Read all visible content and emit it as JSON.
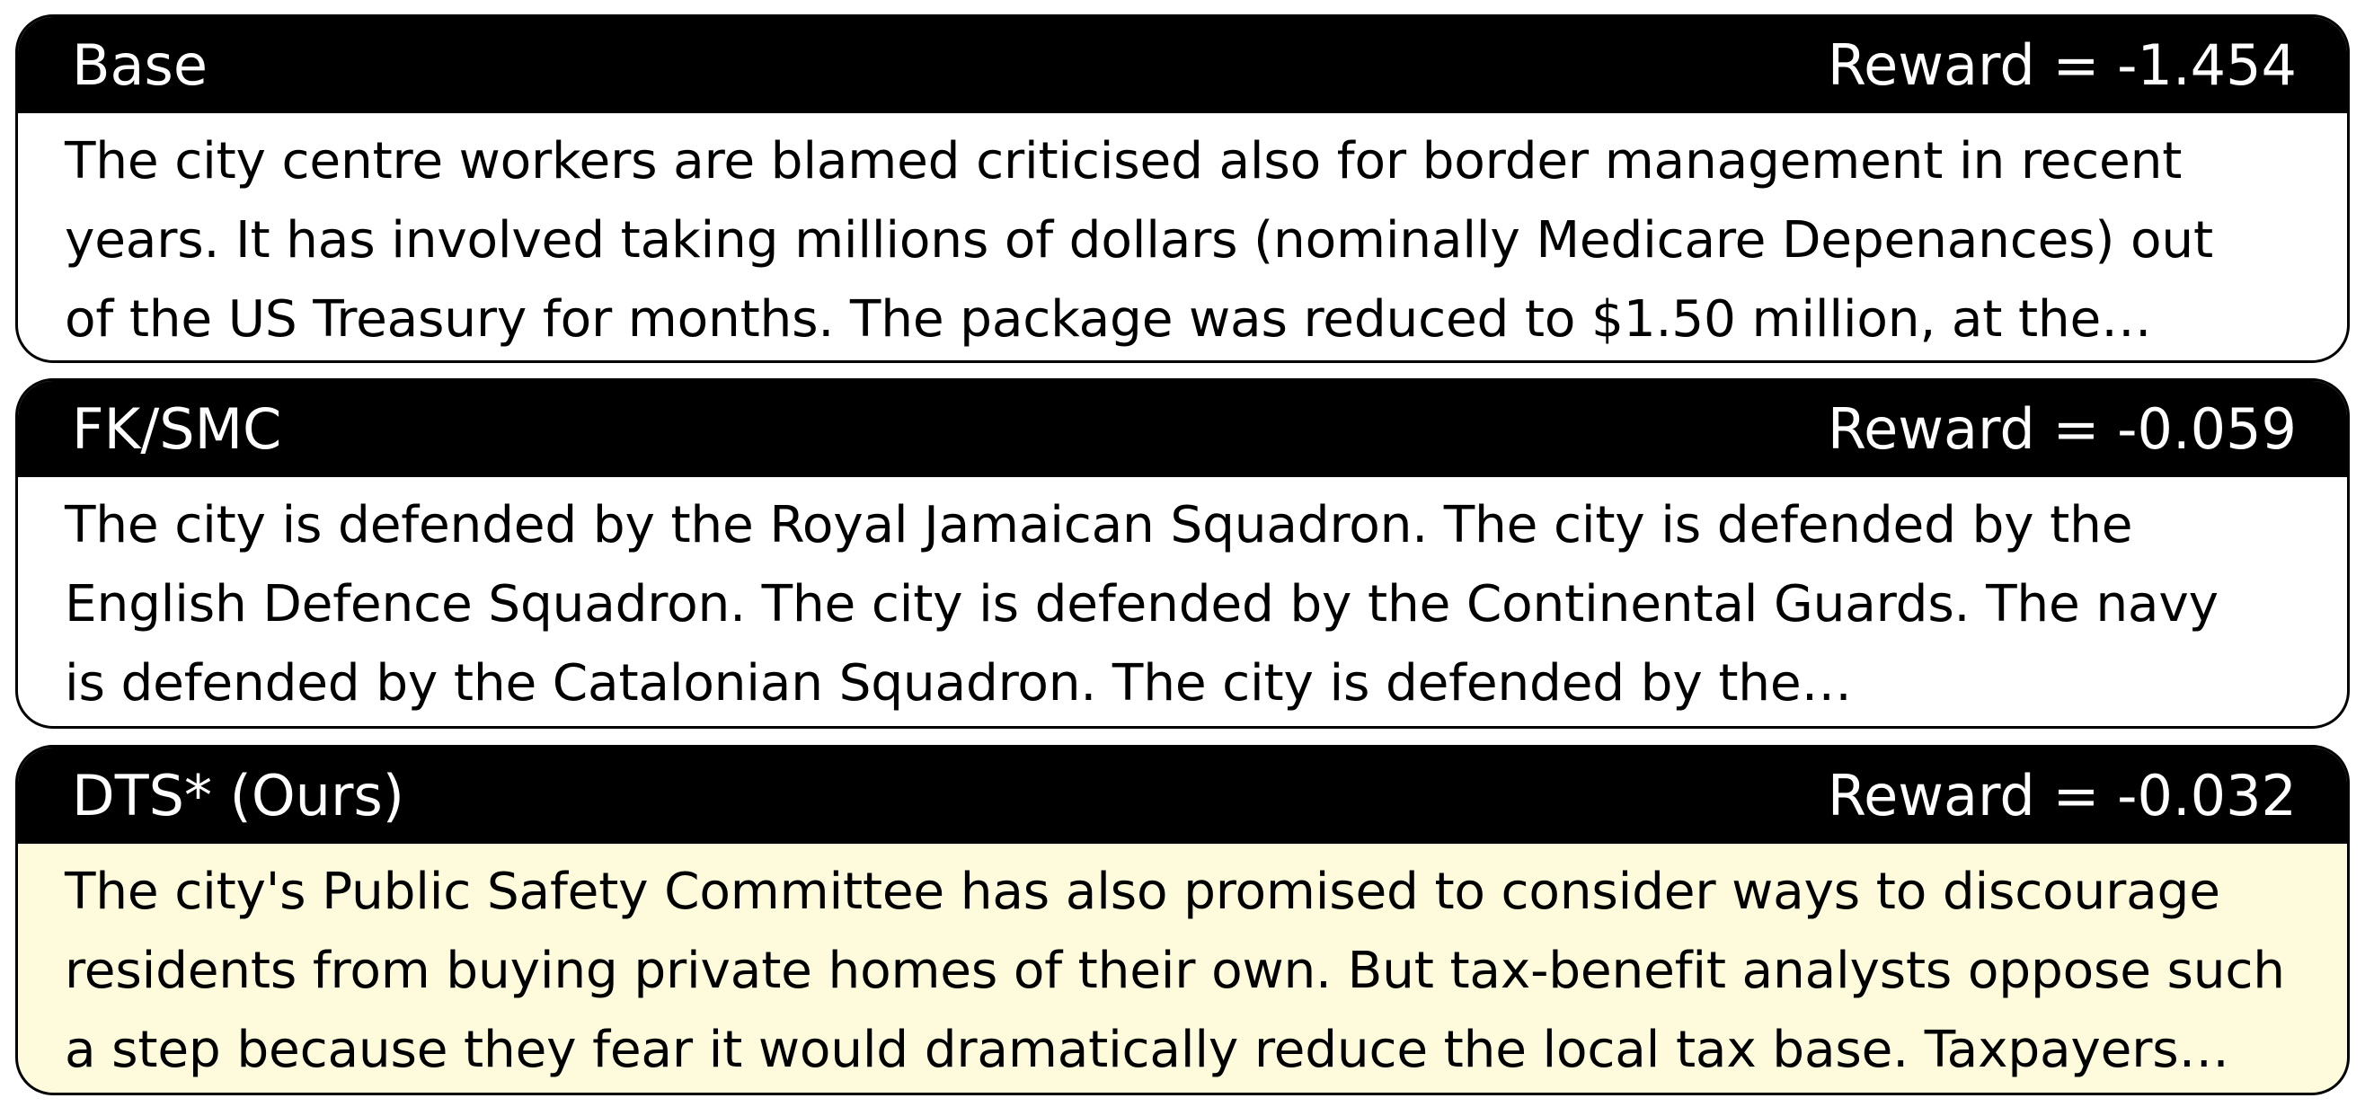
{
  "panels": [
    {
      "method": "Base",
      "reward_text": "Reward = -1.454",
      "reward": -1.454,
      "highlighted": false,
      "background": "#ffffff",
      "lines": [
        "The city centre workers are blamed criticised also for border management in recent",
        "years. It has involved taking millions of dollars (nominally Medicare Depenances) out",
        "of the US Treasury for months. The package was reduced to $1.50 million, at the…"
      ]
    },
    {
      "method": "FK/SMC",
      "reward_text": "Reward = -0.059",
      "reward": -0.059,
      "highlighted": false,
      "background": "#ffffff",
      "lines": [
        "The city is defended by the Royal Jamaican Squadron. The city is defended by the",
        "English Defence Squadron. The city is defended by the Continental Guards. The navy",
        "is defended by the Catalonian Squadron. The city is defended by the…"
      ]
    },
    {
      "method": "DTS* (Ours)",
      "reward_text": "Reward = -0.032",
      "reward": -0.032,
      "highlighted": true,
      "background": "#fdfbdc",
      "lines": [
        "The city's Public Safety Committee has also promised to consider ways to discourage",
        "residents from buying private homes of their own. But tax-benefit analysts oppose such",
        "a step because they fear it would dramatically reduce the local tax base. Taxpayers…"
      ]
    }
  ]
}
